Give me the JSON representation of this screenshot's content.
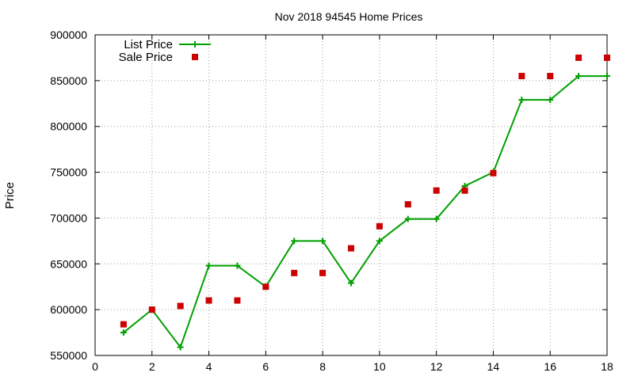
{
  "chart_data": {
    "type": "line",
    "title": "Nov 2018 94545 Home Prices",
    "xlabel": "",
    "ylabel": "Price",
    "xlim": [
      0,
      18
    ],
    "ylim": [
      550000,
      900000
    ],
    "x_ticks": [
      "0",
      "2",
      "4",
      "6",
      "8",
      "10",
      "12",
      "14",
      "16",
      "18"
    ],
    "y_ticks": [
      "550000",
      "600000",
      "650000",
      "700000",
      "750000",
      "800000",
      "850000",
      "900000"
    ],
    "grid": true,
    "legend_position": "top-left",
    "series": [
      {
        "name": "List Price",
        "kind": "line-with-plus-markers",
        "color": "#00a000",
        "x": [
          1,
          2,
          3,
          4,
          5,
          6,
          7,
          8,
          9,
          10,
          11,
          12,
          13,
          14,
          15,
          16,
          17,
          18
        ],
        "values": [
          575000,
          600000,
          559000,
          648000,
          648000,
          625000,
          675000,
          675000,
          629000,
          675000,
          699000,
          699000,
          735000,
          750000,
          829000,
          829000,
          855000,
          855000
        ]
      },
      {
        "name": "Sale Price",
        "kind": "square-markers",
        "color": "#cc0000",
        "x": [
          1,
          2,
          3,
          4,
          5,
          6,
          7,
          8,
          9,
          10,
          11,
          12,
          13,
          14,
          15,
          16,
          17,
          18
        ],
        "values": [
          584000,
          600000,
          604000,
          610000,
          610000,
          625000,
          640000,
          640000,
          667000,
          691000,
          715000,
          730000,
          730000,
          749000,
          855000,
          855000,
          875000,
          875000
        ]
      }
    ]
  }
}
